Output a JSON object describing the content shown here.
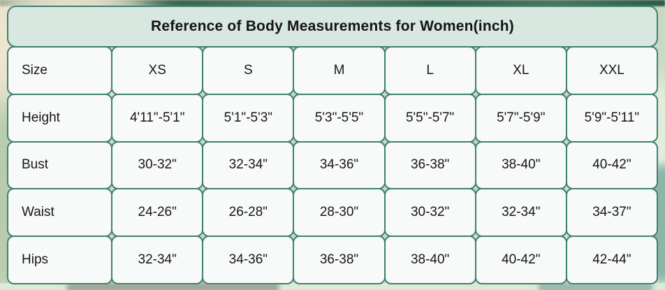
{
  "chart_data": {
    "type": "table",
    "title": "Reference of Body Measurements for Women(inch)",
    "columns": [
      "Size",
      "XS",
      "S",
      "M",
      "L",
      "XL",
      "XXL"
    ],
    "rows": [
      [
        "Height",
        "4'11\"-5'1\"",
        "5'1\"-5'3\"",
        "5'3\"-5'5\"",
        "5'5\"-5'7\"",
        "5'7\"-5'9\"",
        "5'9\"-5'11\""
      ],
      [
        "Bust",
        "30-32\"",
        "32-34\"",
        "34-36\"",
        "36-38\"",
        "38-40\"",
        "40-42\""
      ],
      [
        "Waist",
        "24-26\"",
        "26-28\"",
        "28-30\"",
        "30-32\"",
        "32-34\"",
        "34-37\""
      ],
      [
        "Hips",
        "32-34\"",
        "34-36\"",
        "36-38\"",
        "38-40\"",
        "40-42\"",
        "42-44\""
      ]
    ],
    "layout": {
      "grid": true,
      "header_row": true,
      "label_column": true
    }
  },
  "colors": {
    "border_teal": "#3e8170",
    "title_background": "#d8e7df",
    "cell_background": "#f7faf8",
    "text": "#161616"
  }
}
